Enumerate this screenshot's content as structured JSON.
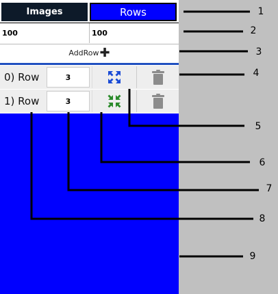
{
  "tabs": {
    "images": "Images",
    "rows": "Rows"
  },
  "sizes": {
    "width": "100",
    "height": "100"
  },
  "add_row": {
    "label": "AddRow",
    "icon": "plus-icon"
  },
  "rows": [
    {
      "label": "0) Row",
      "count": "3",
      "toggle_icon": "expand-icon",
      "delete_icon": "trash-icon"
    },
    {
      "label": "1) Row",
      "count": "3",
      "toggle_icon": "collapse-icon",
      "delete_icon": "trash-icon"
    }
  ],
  "colors": {
    "accent": "#0000ff",
    "dark_tab": "#0d1a29",
    "expand": "#1a4bd6",
    "collapse": "#2a8a2a",
    "trash": "#8c8c8c"
  },
  "callouts": [
    "1",
    "2",
    "3",
    "4",
    "5",
    "6",
    "7",
    "8",
    "9"
  ]
}
